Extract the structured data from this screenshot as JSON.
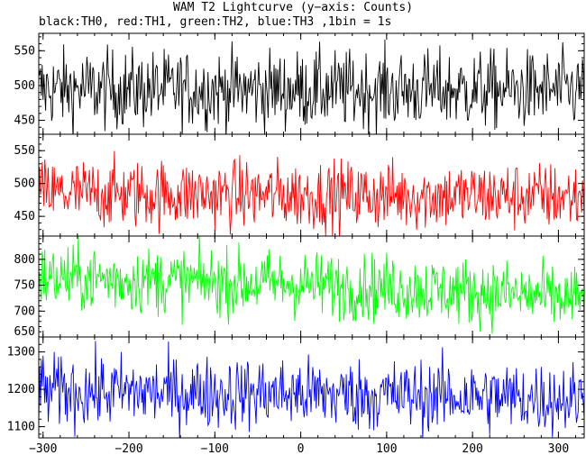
{
  "title": "WAM T2 Lightcurve (y−axis: Counts)",
  "subtitle": "black:TH0, red:TH1, green:TH2, blue:TH3 ,1bin = 1s",
  "chart_data": {
    "type": "line",
    "xlabel": "",
    "ylabel": "",
    "xlim": [
      -305,
      330
    ],
    "x_ticks": [
      -300,
      -200,
      -100,
      0,
      100,
      200,
      300
    ],
    "x_tick_labels": [
      "−300",
      "−200",
      "−100",
      "0",
      "100",
      "200",
      "300"
    ],
    "bin_seconds": 1,
    "panels": [
      {
        "name": "TH0",
        "color": "#000000",
        "ylim": [
          430,
          575
        ],
        "yticks": [
          450,
          500,
          550
        ],
        "trend": [
          [
            -305,
            495
          ],
          [
            330,
            493
          ]
        ],
        "noise": 28
      },
      {
        "name": "TH1",
        "color": "#ff0000",
        "ylim": [
          420,
          575
        ],
        "yticks": [
          450,
          500,
          550
        ],
        "trend": [
          [
            -305,
            485
          ],
          [
            330,
            480
          ]
        ],
        "noise": 26
      },
      {
        "name": "TH2",
        "color": "#00ff00",
        "ylim": [
          650,
          845
        ],
        "yticks": [
          650,
          700,
          750,
          800
        ],
        "trend": [
          [
            -305,
            765
          ],
          [
            0,
            752
          ],
          [
            200,
            738
          ],
          [
            330,
            722
          ]
        ],
        "noise": 32
      },
      {
        "name": "TH3",
        "color": "#0000ff",
        "ylim": [
          1070,
          1340
        ],
        "yticks": [
          1100,
          1200,
          1300
        ],
        "trend": [
          [
            -305,
            1195
          ],
          [
            0,
            1188
          ],
          [
            330,
            1175
          ]
        ],
        "noise": 48
      }
    ]
  }
}
